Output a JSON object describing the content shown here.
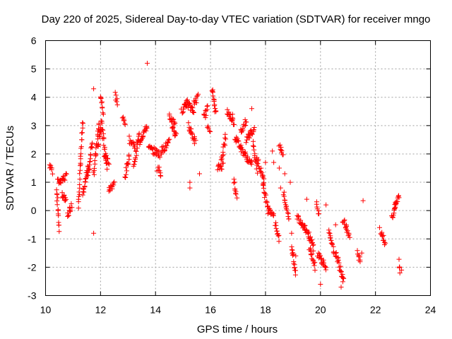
{
  "chart_data": {
    "type": "scatter",
    "title": "Day 220 of 2025, Sidereal Day-to-day VTEC variation (SDTVAR) for receiver mngo",
    "xlabel": "GPS time / hours",
    "ylabel": "SDTVAR / TECUs",
    "xlim": [
      10,
      24
    ],
    "ylim": [
      -3,
      6
    ],
    "xticks": [
      "10",
      "12",
      "14",
      "16",
      "18",
      "20",
      "22",
      "24"
    ],
    "yticks": [
      "-3",
      "-2",
      "-1",
      "0",
      "1",
      "2",
      "3",
      "4",
      "5",
      "6"
    ],
    "grid": true,
    "marker": "+",
    "color": "#ff0000",
    "segments": [
      [
        10.15,
        1.6,
        10.25,
        1.4
      ],
      [
        10.4,
        0.8,
        10.5,
        -0.7
      ],
      [
        10.45,
        1.0,
        10.75,
        1.2
      ],
      [
        10.6,
        0.6,
        10.75,
        0.3
      ],
      [
        10.8,
        -0.2,
        10.95,
        0.2
      ],
      [
        11.2,
        0.2,
        11.35,
        3.1
      ],
      [
        11.35,
        0.5,
        11.55,
        1.6
      ],
      [
        11.55,
        1.2,
        11.7,
        2.5
      ],
      [
        11.75,
        1.3,
        11.95,
        3.1
      ],
      [
        11.9,
        2.2,
        12.05,
        3.2
      ],
      [
        12.0,
        4.1,
        12.1,
        3.5
      ],
      [
        12.05,
        2.9,
        12.25,
        1.5
      ],
      [
        12.15,
        2.0,
        12.3,
        1.7
      ],
      [
        12.3,
        0.7,
        12.5,
        1.0
      ],
      [
        12.55,
        4.1,
        12.6,
        3.8
      ],
      [
        12.8,
        3.3,
        12.9,
        3.0
      ],
      [
        12.9,
        1.2,
        13.05,
        2.0
      ],
      [
        13.05,
        2.5,
        13.25,
        2.3
      ],
      [
        13.2,
        1.5,
        13.4,
        2.7
      ],
      [
        13.4,
        2.4,
        13.7,
        3.0
      ],
      [
        13.75,
        2.2,
        14.15,
        2.0
      ],
      [
        14.1,
        1.5,
        14.2,
        1.3
      ],
      [
        14.2,
        2.1,
        14.5,
        2.4
      ],
      [
        14.5,
        3.3,
        14.7,
        3.1
      ],
      [
        14.6,
        3.0,
        14.75,
        2.6
      ],
      [
        14.95,
        3.5,
        15.15,
        3.9
      ],
      [
        15.1,
        3.8,
        15.4,
        3.5
      ],
      [
        15.2,
        3.0,
        15.45,
        2.4
      ],
      [
        15.4,
        3.8,
        15.55,
        4.0
      ],
      [
        15.75,
        3.3,
        15.9,
        3.6
      ],
      [
        15.9,
        3.0,
        15.98,
        2.9
      ],
      [
        16.05,
        4.3,
        16.2,
        3.4
      ],
      [
        16.25,
        1.5,
        16.45,
        1.6
      ],
      [
        16.4,
        1.8,
        16.55,
        2.6
      ],
      [
        16.6,
        3.5,
        16.85,
        3.1
      ],
      [
        16.85,
        1.1,
        16.95,
        0.5
      ],
      [
        16.9,
        2.6,
        17.1,
        2.2
      ],
      [
        17.1,
        2.8,
        17.3,
        3.2
      ],
      [
        17.1,
        2.2,
        17.5,
        1.6
      ],
      [
        17.3,
        2.5,
        17.6,
        2.9
      ],
      [
        17.55,
        2.4,
        17.7,
        1.4
      ],
      [
        17.7,
        1.8,
        17.95,
        1.1
      ],
      [
        17.9,
        0.9,
        18.1,
        0.1
      ],
      [
        18.1,
        0.0,
        18.3,
        -0.1
      ],
      [
        18.35,
        -0.5,
        18.5,
        -1.0
      ],
      [
        18.5,
        2.3,
        18.65,
        2.0
      ],
      [
        18.65,
        0.6,
        18.85,
        -0.3
      ],
      [
        18.95,
        -1.2,
        19.1,
        -2.3
      ],
      [
        19.15,
        -0.2,
        19.45,
        -0.6
      ],
      [
        19.45,
        -0.6,
        19.75,
        -1.3
      ],
      [
        19.6,
        -1.3,
        19.8,
        -2.0
      ],
      [
        19.85,
        0.2,
        19.95,
        -0.1
      ],
      [
        19.9,
        -1.5,
        20.2,
        -2.0
      ],
      [
        20.3,
        -0.8,
        20.5,
        -1.5
      ],
      [
        20.55,
        -1.5,
        20.85,
        -2.5
      ],
      [
        20.8,
        -0.3,
        20.95,
        -0.6
      ],
      [
        20.95,
        -0.7,
        21.05,
        -1.0
      ],
      [
        21.35,
        -1.4,
        21.45,
        -1.8
      ],
      [
        22.2,
        -0.7,
        22.35,
        -1.2
      ],
      [
        22.6,
        -0.3,
        22.75,
        0.3
      ],
      [
        22.7,
        0.1,
        22.85,
        0.5
      ],
      [
        22.85,
        -1.8,
        22.9,
        -2.2
      ]
    ],
    "isolated": [
      [
        13.7,
        5.2
      ],
      [
        11.75,
        4.3
      ],
      [
        11.75,
        -0.8
      ],
      [
        12.55,
        3.9
      ],
      [
        14.05,
        1.4
      ],
      [
        15.25,
        1.0
      ],
      [
        15.25,
        0.8
      ],
      [
        15.6,
        1.3
      ],
      [
        16.8,
        3.4
      ],
      [
        17.5,
        3.6
      ],
      [
        18.0,
        1.7
      ],
      [
        18.25,
        2.1
      ],
      [
        18.3,
        1.7
      ],
      [
        18.5,
        1.5
      ],
      [
        18.7,
        1.3
      ],
      [
        18.9,
        1.0
      ],
      [
        18.55,
        0.8
      ],
      [
        18.95,
        -0.8
      ],
      [
        19.1,
        -1.6
      ],
      [
        19.5,
        0.4
      ],
      [
        20.0,
        -2.6
      ],
      [
        20.2,
        0.2
      ],
      [
        20.55,
        -0.5
      ],
      [
        20.75,
        -2.7
      ],
      [
        21.5,
        -1.5
      ],
      [
        21.55,
        0.35
      ],
      [
        22.15,
        -0.6
      ],
      [
        22.95,
        -2.1
      ]
    ]
  }
}
